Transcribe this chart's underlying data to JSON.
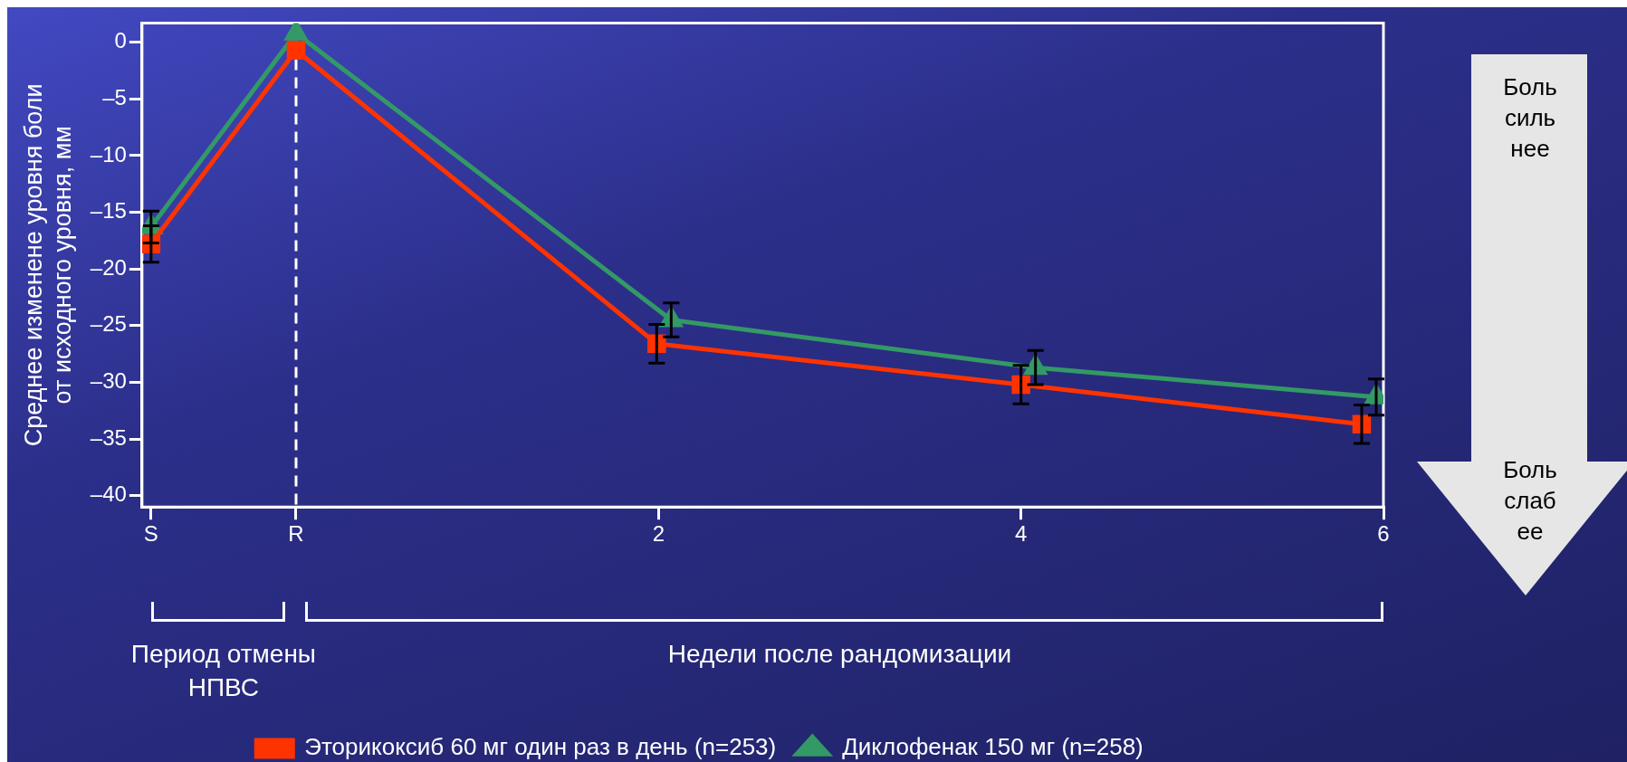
{
  "chart_data": {
    "type": "line",
    "ylabel": "Среднее изменене уровня боли\nот исходного уровня, мм",
    "xlabel": "Недели после рандомизации",
    "annotations": [
      "Период отмены\nНПВС",
      "Боль\nсиль\nнее",
      "Боль\nслаб\nее"
    ],
    "xlim": [
      -0.85,
      6
    ],
    "xticks": [
      {
        "value": -0.8,
        "label": "S"
      },
      {
        "value": 0,
        "label": "R"
      },
      2,
      4,
      6
    ],
    "ylim": [
      -41,
      1.7
    ],
    "yticks": [
      0,
      {
        "value": -5,
        "label": "–5"
      },
      {
        "value": -10,
        "label": "–10"
      },
      {
        "value": -15,
        "label": "–15"
      },
      {
        "value": -20,
        "label": "–20"
      },
      {
        "value": -25,
        "label": "–25"
      },
      {
        "value": -30,
        "label": "–30"
      },
      {
        "value": -35,
        "label": "–35"
      },
      {
        "value": -40,
        "label": "–40"
      }
    ],
    "grid": false,
    "legend": "bottom",
    "ref_lines": [
      {
        "axis": "x",
        "value": 0,
        "color": "#ffffff",
        "line_style": "dashed"
      }
    ],
    "series": [
      {
        "name": "Эторикоксиб 60 мг один раз в день (n=253)",
        "color": "#ff3300",
        "marker": "square",
        "x": [
          -0.8,
          0,
          1.99,
          4.0,
          5.88
        ],
        "values": [
          -17.8,
          -0.7,
          -26.6,
          -30.2,
          -33.7
        ],
        "errors": [
          1.6,
          null,
          1.7,
          1.7,
          1.7
        ]
      },
      {
        "name": "Диклофенак 150 мг (n=258)",
        "color": "#339966",
        "marker": "triangle",
        "x": [
          -0.8,
          0,
          2.07,
          4.08,
          5.96
        ],
        "values": [
          -16.3,
          0.8,
          -24.5,
          -28.7,
          -31.3
        ],
        "errors": [
          1.4,
          null,
          1.5,
          1.5,
          1.6
        ]
      }
    ]
  }
}
